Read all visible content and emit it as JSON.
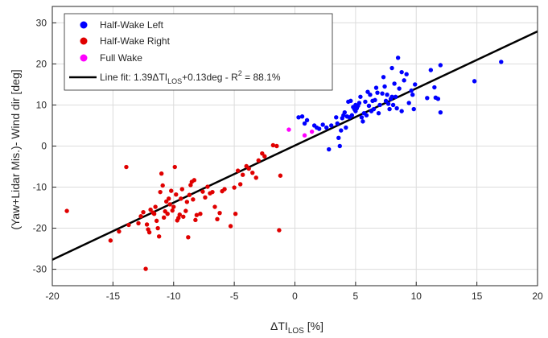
{
  "chart_data": {
    "type": "scatter",
    "title": "",
    "xlabel": {
      "main": "ΔTI",
      "sub": "LOS",
      "rest": " [%]"
    },
    "ylabel": "(Yaw+Lidar Mis.)- Wind dir [deg]",
    "xlim": [
      -20,
      20
    ],
    "ylim": [
      -34,
      34
    ],
    "xticks": [
      -20,
      -15,
      -10,
      -5,
      0,
      5,
      10,
      15,
      20
    ],
    "yticks": [
      -30,
      -20,
      -10,
      0,
      10,
      20,
      30
    ],
    "grid": true,
    "legend_position": "top-left",
    "series": [
      {
        "name": "Half-Wake Left",
        "color": "#0000ff",
        "points": [
          [
            17.0,
            20.5
          ],
          [
            14.8,
            15.8
          ],
          [
            12.0,
            8.2
          ],
          [
            11.8,
            11.5
          ],
          [
            11.6,
            11.8
          ],
          [
            12.0,
            19.7
          ],
          [
            11.5,
            14.3
          ],
          [
            11.2,
            18.5
          ],
          [
            10.9,
            11.7
          ],
          [
            9.9,
            15.0
          ],
          [
            9.8,
            9.0
          ],
          [
            9.7,
            12.5
          ],
          [
            9.6,
            13.5
          ],
          [
            9.4,
            10.5
          ],
          [
            9.2,
            17.5
          ],
          [
            9.0,
            16.0
          ],
          [
            8.8,
            18.0
          ],
          [
            8.8,
            8.5
          ],
          [
            8.6,
            14.0
          ],
          [
            8.5,
            21.5
          ],
          [
            8.4,
            9.2
          ],
          [
            8.3,
            12.0
          ],
          [
            8.2,
            15.2
          ],
          [
            8.1,
            10.0
          ],
          [
            8.0,
            19.0
          ],
          [
            8.0,
            12.0
          ],
          [
            7.9,
            11.5
          ],
          [
            7.8,
            9.0
          ],
          [
            7.7,
            10.3
          ],
          [
            7.6,
            12.5
          ],
          [
            7.5,
            11.0
          ],
          [
            7.4,
            14.5
          ],
          [
            7.3,
            16.8
          ],
          [
            7.2,
            12.8
          ],
          [
            7.0,
            10.0
          ],
          [
            6.9,
            8.0
          ],
          [
            6.8,
            13.0
          ],
          [
            6.7,
            14.2
          ],
          [
            6.6,
            11.2
          ],
          [
            6.5,
            9.0
          ],
          [
            6.4,
            11.0
          ],
          [
            6.3,
            8.5
          ],
          [
            6.2,
            12.5
          ],
          [
            6.1,
            9.8
          ],
          [
            6.0,
            13.2
          ],
          [
            5.9,
            7.5
          ],
          [
            5.8,
            10.8
          ],
          [
            5.7,
            8.0
          ],
          [
            5.6,
            6.0
          ],
          [
            5.5,
            7.0
          ],
          [
            5.4,
            12.0
          ],
          [
            5.3,
            10.5
          ],
          [
            5.2,
            9.8
          ],
          [
            5.1,
            9.2
          ],
          [
            5.0,
            8.5
          ],
          [
            5.0,
            10.0
          ],
          [
            4.9,
            9.0
          ],
          [
            4.8,
            9.5
          ],
          [
            4.7,
            7.5
          ],
          [
            4.6,
            11.0
          ],
          [
            4.5,
            7.0
          ],
          [
            4.4,
            10.8
          ],
          [
            4.3,
            7.2
          ],
          [
            4.2,
            4.5
          ],
          [
            4.1,
            8.2
          ],
          [
            4.0,
            7.5
          ],
          [
            3.9,
            6.8
          ],
          [
            3.8,
            3.8
          ],
          [
            3.7,
            0.0
          ],
          [
            3.6,
            2.0
          ],
          [
            3.5,
            5.5
          ],
          [
            3.4,
            7.0
          ],
          [
            3.0,
            5.0
          ],
          [
            2.8,
            -0.8
          ],
          [
            2.6,
            4.5
          ],
          [
            2.3,
            5.2
          ],
          [
            2.0,
            4.2
          ],
          [
            1.8,
            4.5
          ],
          [
            1.6,
            5.0
          ],
          [
            1.0,
            6.3
          ],
          [
            0.8,
            5.5
          ],
          [
            0.6,
            7.2
          ],
          [
            0.3,
            7.0
          ]
        ]
      },
      {
        "name": "Half-Wake Right",
        "color": "#e00000",
        "points": [
          [
            -18.8,
            -15.8
          ],
          [
            -15.2,
            -23.0
          ],
          [
            -14.5,
            -20.8
          ],
          [
            -13.9,
            -5.1
          ],
          [
            -13.7,
            -19.2
          ],
          [
            -12.9,
            -18.8
          ],
          [
            -12.7,
            -17.1
          ],
          [
            -12.5,
            -16.1
          ],
          [
            -12.3,
            -29.9
          ],
          [
            -12.2,
            -19.1
          ],
          [
            -12.1,
            -20.3
          ],
          [
            -12.0,
            -21.0
          ],
          [
            -11.9,
            -15.5
          ],
          [
            -11.7,
            -16.2
          ],
          [
            -11.6,
            -16.5
          ],
          [
            -11.5,
            -14.8
          ],
          [
            -11.4,
            -18.2
          ],
          [
            -11.3,
            -20.0
          ],
          [
            -11.2,
            -22.0
          ],
          [
            -11.1,
            -11.2
          ],
          [
            -11.0,
            -6.7
          ],
          [
            -10.9,
            -9.6
          ],
          [
            -10.8,
            -17.4
          ],
          [
            -10.7,
            -15.9
          ],
          [
            -10.6,
            -13.5
          ],
          [
            -10.5,
            -16.5
          ],
          [
            -10.4,
            -12.8
          ],
          [
            -10.3,
            -14.2
          ],
          [
            -10.2,
            -10.9
          ],
          [
            -10.1,
            -15.7
          ],
          [
            -10.0,
            -14.8
          ],
          [
            -9.9,
            -5.1
          ],
          [
            -9.8,
            -11.8
          ],
          [
            -9.7,
            -18.1
          ],
          [
            -9.6,
            -17.5
          ],
          [
            -9.5,
            -16.7
          ],
          [
            -9.4,
            -12.8
          ],
          [
            -9.3,
            -10.5
          ],
          [
            -9.2,
            -17.2
          ],
          [
            -9.0,
            -15.8
          ],
          [
            -8.9,
            -13.6
          ],
          [
            -8.8,
            -22.2
          ],
          [
            -8.7,
            -11.9
          ],
          [
            -8.6,
            -9.5
          ],
          [
            -8.5,
            -8.7
          ],
          [
            -8.4,
            -13.0
          ],
          [
            -8.3,
            -8.3
          ],
          [
            -8.2,
            -18.0
          ],
          [
            -8.1,
            -16.8
          ],
          [
            -7.8,
            -16.5
          ],
          [
            -7.6,
            -11.1
          ],
          [
            -7.4,
            -12.5
          ],
          [
            -7.2,
            -9.9
          ],
          [
            -7.0,
            -11.5
          ],
          [
            -6.8,
            -11.2
          ],
          [
            -6.6,
            -14.8
          ],
          [
            -6.4,
            -17.8
          ],
          [
            -6.2,
            -16.3
          ],
          [
            -6.0,
            -11.0
          ],
          [
            -5.8,
            -10.5
          ],
          [
            -5.3,
            -19.5
          ],
          [
            -5.0,
            -10.1
          ],
          [
            -4.9,
            -16.5
          ],
          [
            -4.7,
            -6.0
          ],
          [
            -4.5,
            -9.3
          ],
          [
            -4.3,
            -7.0
          ],
          [
            -4.0,
            -4.9
          ],
          [
            -3.8,
            -5.5
          ],
          [
            -3.5,
            -6.5
          ],
          [
            -3.2,
            -7.7
          ],
          [
            -3.0,
            -3.5
          ],
          [
            -2.7,
            -1.8
          ],
          [
            -2.5,
            -2.5
          ],
          [
            -1.8,
            0.2
          ],
          [
            -1.5,
            0.0
          ],
          [
            -1.3,
            -20.5
          ],
          [
            -1.2,
            -7.2
          ]
        ]
      },
      {
        "name": "Full Wake",
        "color": "#ff00ff",
        "points": [
          [
            -0.5,
            4.0
          ],
          [
            0.8,
            2.6
          ],
          [
            1.4,
            3.5
          ]
        ]
      },
      {
        "name": {
          "main": "Line fit: 1.39ΔTI",
          "sub": "LOS",
          "mid": "+0.13deg - R",
          "sup": "2",
          "end": " = 88.1%"
        },
        "type": "line",
        "color": "#000000",
        "slope": 1.39,
        "intercept": 0.13,
        "x_range": [
          -20,
          20
        ]
      }
    ]
  }
}
